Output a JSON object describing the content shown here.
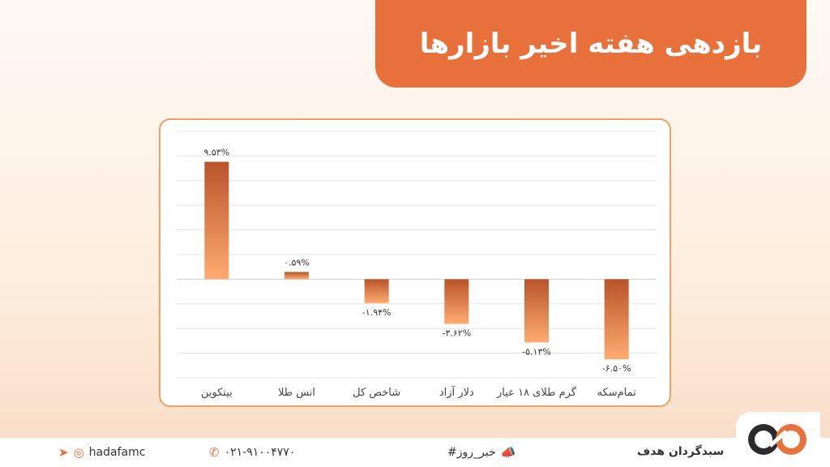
{
  "title": "بازدهی هفته اخیر بازارها",
  "footer": {
    "social": "hadafamc",
    "phone": "۰۲۱-۹۱۰۰۴۷۷۰",
    "hashtag": "#خبر_روز",
    "brand": "سبدگردان هدف"
  },
  "icons": {
    "telegram": "telegram-icon",
    "instagram": "instagram-icon",
    "phone": "phone-icon",
    "megaphone": "megaphone-icon",
    "logo": "infinity-logo-icon"
  },
  "colors": {
    "accent": "#e8703a",
    "bar_top": "#b8542a",
    "bar_bottom": "#ffab70"
  },
  "chart_data": {
    "type": "bar",
    "categories": [
      "بیتکوین",
      "انس طلا",
      "شاخص کل",
      "دلار آزاد",
      "گرم طلای ۱۸ عیار",
      "تمام‌سکه"
    ],
    "values": [
      9.53,
      0.59,
      -1.94,
      -3.62,
      -5.13,
      -6.5
    ],
    "data_labels": [
      "۹.۵۳%",
      "۰.۵۹%",
      "-۱.۹۴%",
      "-۳.۶۲%",
      "-۵.۱۳%",
      "-۶.۵۰%"
    ],
    "ylim": [
      -8,
      12
    ],
    "grid": true,
    "legend": "none"
  }
}
